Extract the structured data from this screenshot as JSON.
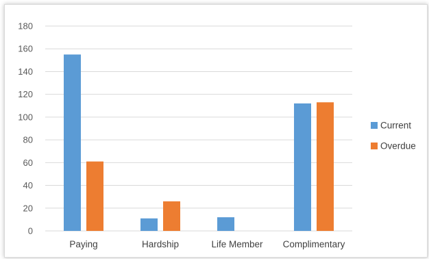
{
  "chart_data": {
    "type": "bar",
    "title": "",
    "xlabel": "",
    "ylabel": "",
    "categories": [
      "Paying",
      "Hardship",
      "Life Member",
      "Complimentary"
    ],
    "series": [
      {
        "name": "Current",
        "values": [
          155,
          11,
          12,
          112
        ],
        "color": "#5b9bd5"
      },
      {
        "name": "Overdue",
        "values": [
          61,
          26,
          0,
          113
        ],
        "color": "#ed7d31"
      }
    ],
    "ylim": [
      0,
      180
    ],
    "yticks": [
      0,
      20,
      40,
      60,
      80,
      100,
      120,
      140,
      160,
      180
    ],
    "grid": true,
    "gridColor": "#d9d9d9",
    "legend": "right"
  }
}
